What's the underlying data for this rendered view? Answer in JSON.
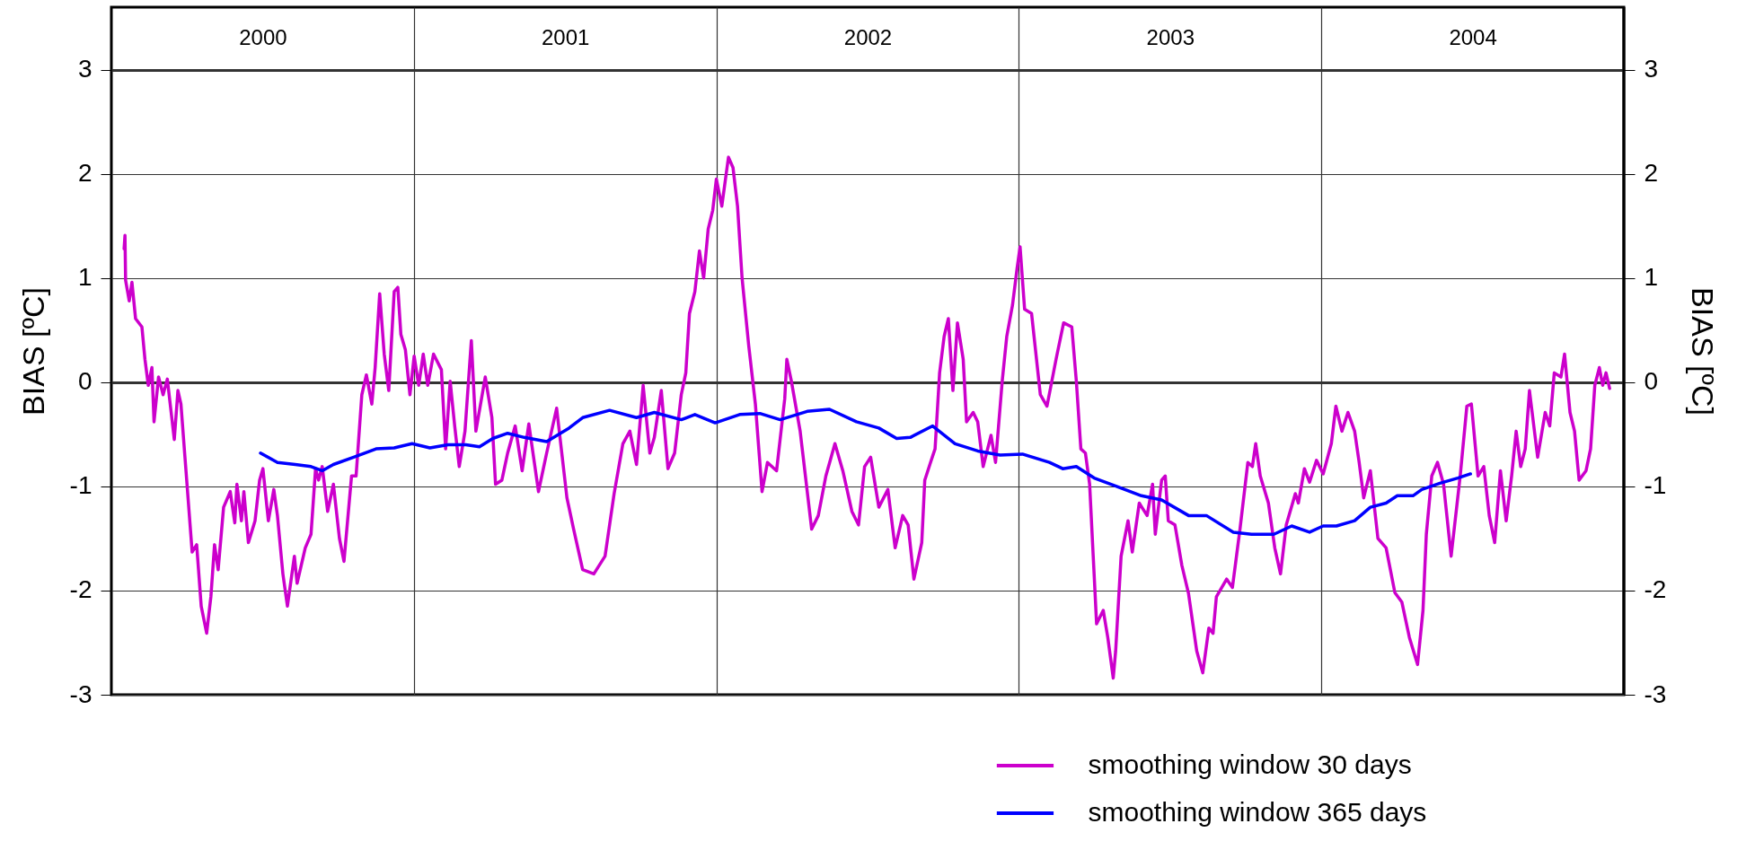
{
  "chart_data": {
    "type": "line",
    "ylabel": "BIAS [ºC]",
    "y2label": "BIAS [ºC]",
    "xlim": [
      2000,
      2005
    ],
    "xticks": [
      {
        "value": 2000.5,
        "label": "2000"
      },
      {
        "value": 2001,
        "label": null
      },
      {
        "value": 2001.5,
        "label": "2001"
      },
      {
        "value": 2002,
        "label": null
      },
      {
        "value": 2002.5,
        "label": "2002"
      },
      {
        "value": 2003,
        "label": null
      },
      {
        "value": 2003.5,
        "label": "2003"
      },
      {
        "value": 2004,
        "label": null
      },
      {
        "value": 2004.5,
        "label": "2004"
      }
    ],
    "ylim": [
      -3,
      3.6
    ],
    "yticks": [
      -3,
      -2,
      -1,
      0,
      1,
      2,
      3
    ],
    "y2lim": [
      -3,
      3.6
    ],
    "y2ticks": [
      -3,
      -2,
      -1,
      0,
      1,
      2,
      3
    ],
    "grid": true,
    "legend": "bottom right",
    "line_style": "solid",
    "series": [
      {
        "name": "smoothing window 30 days",
        "color": "#cc00cc",
        "x": [
          2000.042,
          2000.045,
          2000.047,
          2000.059,
          2000.068,
          2000.08,
          2000.101,
          2000.111,
          2000.122,
          2000.134,
          2000.141,
          2000.156,
          2000.171,
          2000.185,
          2000.208,
          2000.22,
          2000.23,
          2000.249,
          2000.267,
          2000.282,
          2000.297,
          2000.315,
          2000.329,
          2000.341,
          2000.353,
          2000.371,
          2000.393,
          2000.408,
          2000.415,
          2000.43,
          2000.438,
          2000.453,
          2000.475,
          2000.49,
          2000.501,
          2000.519,
          2000.537,
          2000.549,
          2000.567,
          2000.582,
          2000.605,
          2000.614,
          2000.641,
          2000.66,
          2000.675,
          2000.685,
          2000.697,
          2000.715,
          2000.734,
          2000.754,
          2000.769,
          2000.794,
          2000.809,
          2000.828,
          2000.843,
          2000.861,
          2000.872,
          2000.887,
          2000.902,
          2000.917,
          2000.935,
          2000.947,
          2000.957,
          2000.972,
          2000.987,
          2001.001,
          2001.016,
          2001.031,
          2001.046,
          2001.065,
          2001.091,
          2001.105,
          2001.12,
          2001.135,
          2001.15,
          2001.169,
          2001.19,
          2001.205,
          2001.236,
          2001.258,
          2001.27,
          2001.291,
          2001.31,
          2001.335,
          2001.358,
          2001.38,
          2001.412,
          2001.439,
          2001.472,
          2001.506,
          2001.528,
          2001.558,
          2001.595,
          2001.632,
          2001.662,
          2001.691,
          2001.714,
          2001.736,
          2001.758,
          2001.78,
          2001.795,
          2001.818,
          2001.84,
          2001.862,
          2001.884,
          2001.899,
          2001.911,
          2001.929,
          2001.944,
          2001.958,
          2001.973,
          2001.988,
          2002.0,
          2002.018,
          2002.04,
          2002.055,
          2002.07,
          2002.085,
          2002.107,
          2002.129,
          2002.151,
          2002.169,
          2002.199,
          2002.226,
          2002.233,
          2002.248,
          2002.277,
          2002.315,
          2002.337,
          2002.362,
          2002.392,
          2002.418,
          2002.448,
          2002.47,
          2002.49,
          2002.51,
          2002.537,
          2002.567,
          2002.591,
          2002.616,
          2002.634,
          2002.653,
          2002.679,
          2002.689,
          2002.708,
          2002.723,
          2002.738,
          2002.753,
          2002.767,
          2002.782,
          2002.797,
          2002.816,
          2002.827,
          2002.849,
          2002.864,
          2002.882,
          2002.908,
          2002.923,
          2002.945,
          2002.96,
          2002.979,
          2002.994,
          2003.004,
          2003.019,
          2003.042,
          2003.071,
          2003.093,
          2003.123,
          2003.148,
          2003.175,
          2003.19,
          2003.205,
          2003.22,
          2003.234,
          2003.257,
          2003.279,
          2003.294,
          2003.312,
          2003.32,
          2003.338,
          2003.361,
          2003.375,
          2003.398,
          2003.424,
          2003.442,
          2003.451,
          2003.472,
          2003.484,
          2003.494,
          2003.516,
          2003.539,
          2003.561,
          2003.588,
          2003.608,
          2003.628,
          2003.642,
          2003.653,
          2003.687,
          2003.706,
          2003.731,
          2003.757,
          2003.772,
          2003.783,
          2003.798,
          2003.825,
          2003.846,
          2003.865,
          2003.884,
          2003.914,
          2003.924,
          2003.944,
          2003.961,
          2003.984,
          2004.006,
          2004.033,
          2004.048,
          2004.068,
          2004.088,
          2004.11,
          2004.125,
          2004.14,
          2004.162,
          2004.187,
          2004.214,
          2004.243,
          2004.266,
          2004.291,
          2004.318,
          2004.336,
          2004.347,
          2004.365,
          2004.384,
          2004.404,
          2004.429,
          2004.459,
          2004.481,
          2004.496,
          2004.518,
          2004.537,
          2004.555,
          2004.573,
          2004.592,
          2004.611,
          2004.629,
          2004.644,
          2004.659,
          2004.674,
          2004.688,
          2004.715,
          2004.74,
          2004.755,
          2004.77,
          2004.792,
          2004.804,
          2004.822,
          2004.837,
          2004.852,
          2004.875,
          2004.89,
          2004.904,
          2004.919,
          2004.93,
          2004.941,
          2004.953
        ],
        "values": [
          1.28,
          1.41,
          0.98,
          0.78,
          0.96,
          0.61,
          0.53,
          0.22,
          -0.03,
          0.14,
          -0.38,
          0.05,
          -0.12,
          0.03,
          -0.55,
          -0.08,
          -0.21,
          -0.94,
          -1.63,
          -1.56,
          -2.15,
          -2.41,
          -2.06,
          -1.56,
          -1.8,
          -1.2,
          -1.05,
          -1.35,
          -0.98,
          -1.33,
          -1.05,
          -1.54,
          -1.33,
          -0.94,
          -0.83,
          -1.33,
          -1.03,
          -1.28,
          -1.84,
          -2.15,
          -1.67,
          -1.93,
          -1.59,
          -1.46,
          -0.83,
          -0.94,
          -0.81,
          -1.24,
          -0.98,
          -1.5,
          -1.72,
          -0.9,
          -0.9,
          -0.12,
          0.07,
          -0.21,
          0.14,
          0.85,
          0.27,
          -0.08,
          0.87,
          0.91,
          0.46,
          0.31,
          -0.12,
          0.25,
          -0.03,
          0.27,
          -0.03,
          0.27,
          0.12,
          -0.64,
          0.01,
          -0.42,
          -0.81,
          -0.47,
          0.4,
          -0.47,
          0.05,
          -0.34,
          -0.98,
          -0.94,
          -0.68,
          -0.42,
          -0.85,
          -0.4,
          -1.05,
          -0.68,
          -0.25,
          -1.11,
          -1.41,
          -1.8,
          -1.84,
          -1.67,
          -1.07,
          -0.59,
          -0.47,
          -0.79,
          -0.03,
          -0.68,
          -0.53,
          -0.08,
          -0.83,
          -0.68,
          -0.12,
          0.09,
          0.66,
          0.87,
          1.26,
          1.0,
          1.47,
          1.65,
          1.95,
          1.69,
          2.16,
          2.06,
          1.69,
          1.0,
          0.35,
          -0.21,
          -1.05,
          -0.77,
          -0.85,
          -0.16,
          0.22,
          0.01,
          -0.47,
          -1.41,
          -1.28,
          -0.9,
          -0.59,
          -0.85,
          -1.24,
          -1.37,
          -0.81,
          -0.72,
          -1.2,
          -1.03,
          -1.59,
          -1.28,
          -1.37,
          -1.89,
          -1.54,
          -0.94,
          -0.77,
          -0.64,
          0.09,
          0.44,
          0.61,
          -0.08,
          0.57,
          0.22,
          -0.38,
          -0.29,
          -0.38,
          -0.81,
          -0.51,
          -0.77,
          0.01,
          0.44,
          0.74,
          1.09,
          1.3,
          0.7,
          0.66,
          -0.12,
          -0.23,
          0.22,
          0.57,
          0.53,
          0.01,
          -0.64,
          -0.68,
          -0.98,
          -2.32,
          -2.19,
          -2.45,
          -2.84,
          -2.58,
          -1.67,
          -1.33,
          -1.63,
          -1.16,
          -1.28,
          -0.98,
          -1.46,
          -0.94,
          -0.9,
          -1.33,
          -1.37,
          -1.76,
          -2.03,
          -2.58,
          -2.79,
          -2.36,
          -2.41,
          -2.06,
          -1.89,
          -1.97,
          -1.41,
          -0.77,
          -0.81,
          -0.59,
          -0.9,
          -1.16,
          -1.59,
          -1.84,
          -1.37,
          -1.07,
          -1.16,
          -0.83,
          -0.96,
          -0.75,
          -0.88,
          -0.59,
          -0.23,
          -0.47,
          -0.29,
          -0.47,
          -0.77,
          -1.11,
          -0.85,
          -1.5,
          -1.59,
          -2.02,
          -2.11,
          -2.45,
          -2.71,
          -2.19,
          -1.46,
          -0.9,
          -0.77,
          -0.98,
          -1.67,
          -0.9,
          -0.23,
          -0.21,
          -0.9,
          -0.81,
          -1.28,
          -1.54,
          -0.85,
          -1.33,
          -0.9,
          -0.47,
          -0.81,
          -0.64,
          -0.08,
          -0.72,
          -0.29,
          -0.42,
          0.09,
          0.05,
          0.27,
          -0.29,
          -0.47,
          -0.94,
          -0.85,
          -0.64,
          -0.03,
          0.14,
          -0.03,
          0.09,
          -0.06
        ]
      },
      {
        "name": "smoothing window 365 days",
        "color": "#0000ff",
        "x": [
          2000.493,
          2000.549,
          2000.608,
          2000.66,
          2000.697,
          2000.734,
          2000.801,
          2000.875,
          2000.935,
          2000.994,
          2001.053,
          2001.113,
          2001.172,
          2001.217,
          2001.261,
          2001.31,
          2001.365,
          2001.439,
          2001.513,
          2001.558,
          2001.647,
          2001.736,
          2001.795,
          2001.884,
          2001.929,
          2001.996,
          2002.077,
          2002.144,
          2002.211,
          2002.3,
          2002.374,
          2002.463,
          2002.537,
          2002.596,
          2002.641,
          2002.715,
          2002.789,
          2002.864,
          2002.938,
          2003.012,
          2003.101,
          2003.145,
          2003.19,
          2003.249,
          2003.323,
          2003.405,
          2003.472,
          2003.561,
          2003.62,
          2003.709,
          2003.769,
          2003.843,
          2003.902,
          2003.961,
          2004.006,
          2004.05,
          2004.11,
          2004.162,
          2004.214,
          2004.251,
          2004.303,
          2004.332,
          2004.392,
          2004.451,
          2004.493
        ],
        "values": [
          -0.68,
          -0.77,
          -0.79,
          -0.81,
          -0.85,
          -0.79,
          -0.72,
          -0.64,
          -0.63,
          -0.59,
          -0.63,
          -0.6,
          -0.6,
          -0.62,
          -0.54,
          -0.49,
          -0.53,
          -0.57,
          -0.44,
          -0.34,
          -0.27,
          -0.34,
          -0.29,
          -0.36,
          -0.31,
          -0.39,
          -0.31,
          -0.3,
          -0.36,
          -0.28,
          -0.26,
          -0.38,
          -0.44,
          -0.54,
          -0.53,
          -0.42,
          -0.59,
          -0.66,
          -0.7,
          -0.69,
          -0.77,
          -0.83,
          -0.81,
          -0.92,
          -1.0,
          -1.09,
          -1.13,
          -1.28,
          -1.28,
          -1.44,
          -1.46,
          -1.46,
          -1.38,
          -1.44,
          -1.38,
          -1.38,
          -1.33,
          -1.2,
          -1.16,
          -1.09,
          -1.09,
          -1.03,
          -0.97,
          -0.92,
          -0.88
        ]
      }
    ]
  }
}
